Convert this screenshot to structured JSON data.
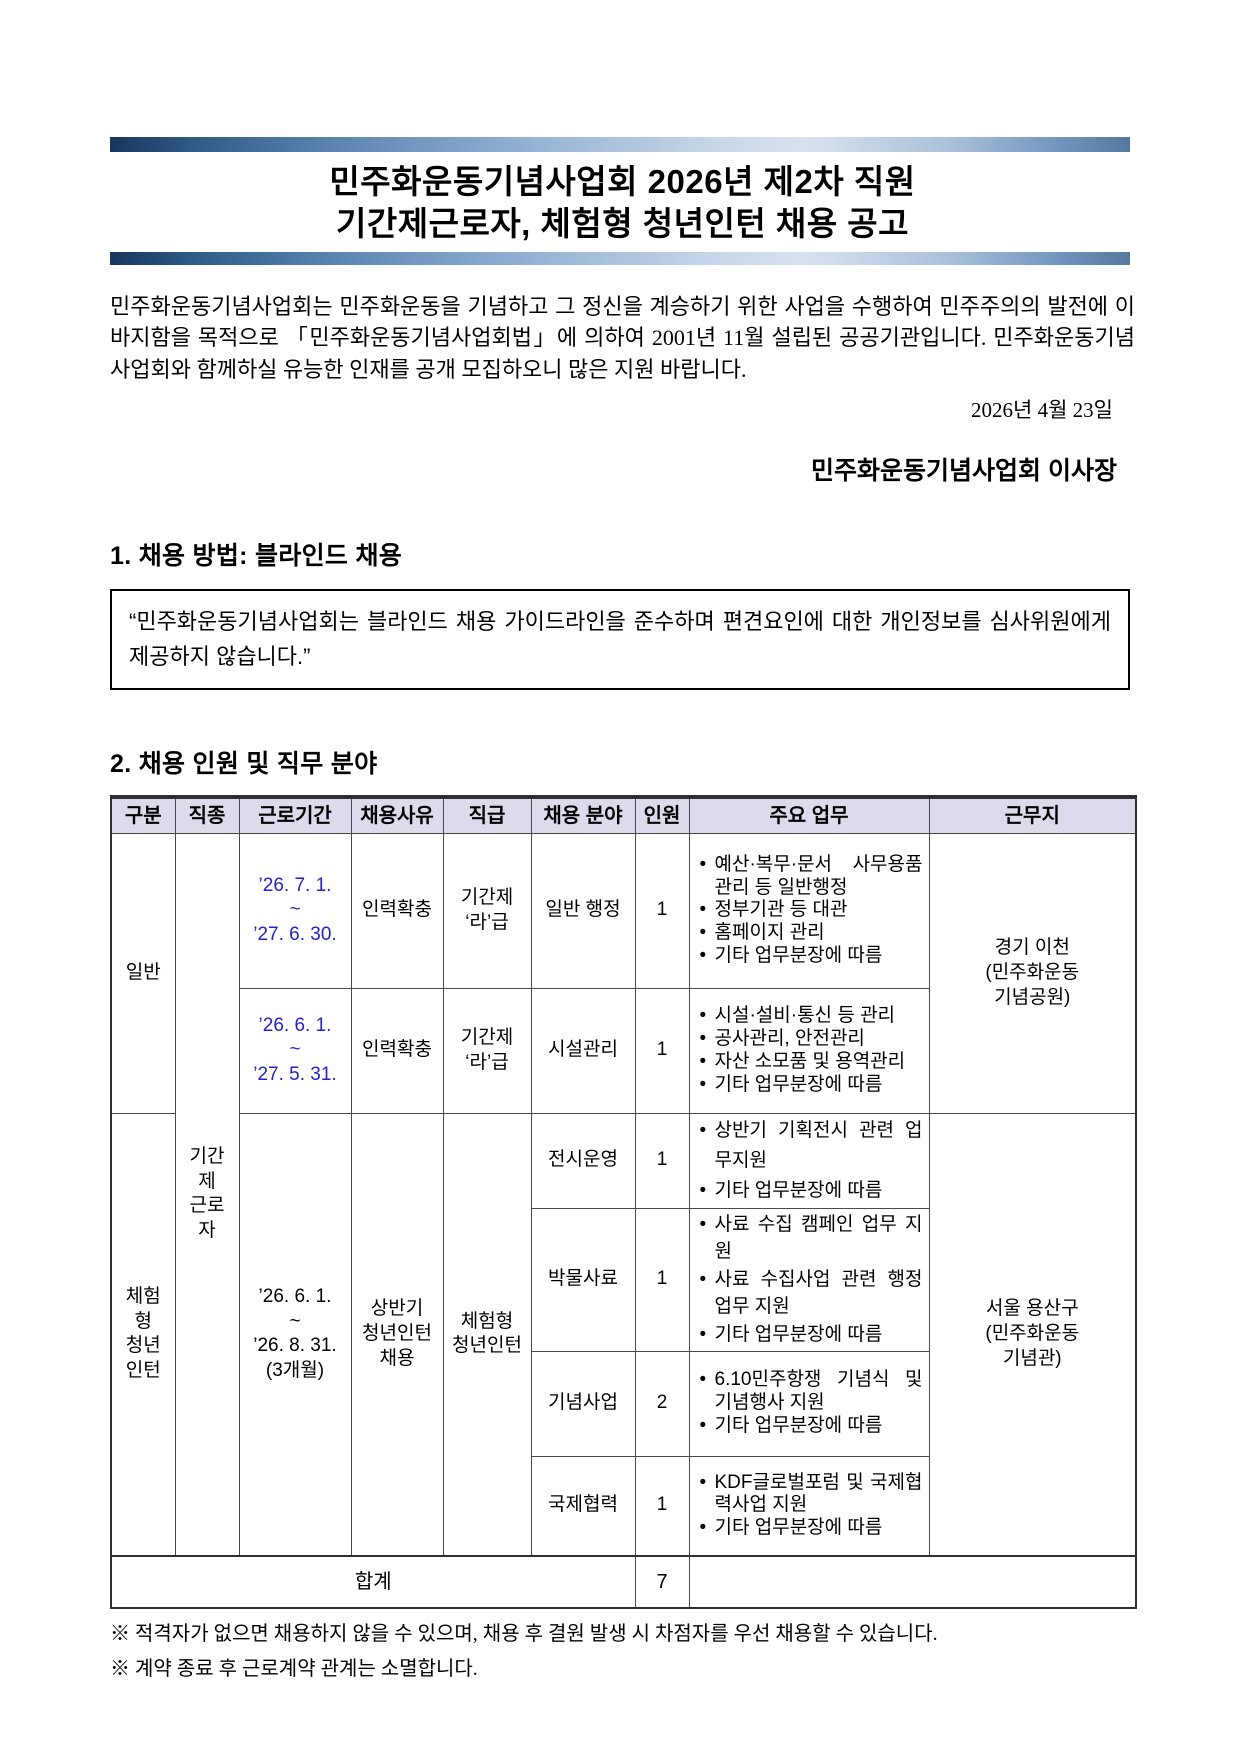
{
  "colors": {
    "date_blue": "#2323c8",
    "table_header_bg": "#dbdbeb"
  },
  "doc": {
    "title_line1": "민주화운동기념사업회 2026년 제2차 직원",
    "title_line2": "기간제근로자, 체험형 청년인턴 채용 공고",
    "intro": "민주화운동기념사업회는 민주화운동을 기념하고 그 정신을 계승하기 위한 사업을 수행하여 민주주의의 발전에 이바지함을 목적으로 「민주화운동기념사업회법」에 의하여 2001년 11월 설립된 공공기관입니다. 민주화운동기념사업회와 함께하실 유능한 인재를 공개 모집하오니 많은 지원 바랍니다.",
    "date": "2026년 4월 23일",
    "issuer": "민주화운동기념사업회 이사장",
    "section1_heading": "1. 채용 방법: 블라인드 채용",
    "blind_quote": "“민주화운동기념사업회는 블라인드 채용 가이드라인을 준수하며 편견요인에 대한 개인정보를 심사위원에게 제공하지 않습니다.”",
    "section2_heading": "2. 채용 인원 및 직무 분야",
    "notes": [
      "※ 적격자가 없으면 채용하지 않을 수 있으며, 채용 후 결원 발생 시 차점자를 우선 채용할 수 있습니다.",
      "※ 계약 종료 후 근로계약 관계는 소멸합니다."
    ]
  },
  "table": {
    "headers": [
      "구분",
      "직종",
      "근로기간",
      "채용사유",
      "직급",
      "채용 분야",
      "인원",
      "주요 업무",
      "근무지"
    ],
    "groups": {
      "general": "일반",
      "intern": "체험형\n청년\n인턴"
    },
    "job_type": "기간제\n근로자",
    "locations": {
      "general": "경기 이천\n(민주화운동\n기념공원)",
      "intern": "서울 용산구\n(민주화운동\n기념관)"
    },
    "intern_common": {
      "period": "’26. 6. 1.\n~\n’26. 8. 31.\n(3개월)",
      "reason": "상반기\n청년인턴\n채용",
      "grade": "체험형\n청년인턴"
    },
    "rows": [
      {
        "period": "’26. 7. 1.\n~\n’27. 6. 30.",
        "reason": "인력확충",
        "grade": "기간제\n‘라’급",
        "field": "일반 행정",
        "count": "1",
        "tasks": [
          "예산·복무·문서 사무용품 관리 등 일반행정",
          "정부기관 등 대관",
          "홈페이지 관리",
          "기타 업무분장에 따름"
        ]
      },
      {
        "period": "’26. 6. 1.\n~\n’27. 5. 31.",
        "reason": "인력확충",
        "grade": "기간제\n‘라’급",
        "field": "시설관리",
        "count": "1",
        "tasks": [
          "시설·설비·통신 등 관리",
          "공사관리, 안전관리",
          "자산 소모품 및 용역관리",
          "기타 업무분장에 따름"
        ]
      },
      {
        "field": "전시운영",
        "count": "1",
        "tasks": [
          "상반기 기획전시 관련 업무지원",
          "기타 업무분장에 따름"
        ]
      },
      {
        "field": "박물사료",
        "count": "1",
        "tasks": [
          "사료 수집 캠페인 업무 지원",
          "사료 수집사업 관련 행정 업무 지원",
          "기타 업무분장에 따름"
        ]
      },
      {
        "field": "기념사업",
        "count": "2",
        "tasks": [
          "6.10민주항쟁 기념식 및 기념행사 지원",
          "기타 업무분장에 따름"
        ]
      },
      {
        "field": "국제협력",
        "count": "1",
        "tasks": [
          "KDF글로벌포럼 및 국제협력사업 지원",
          "기타 업무분장에 따름"
        ]
      }
    ],
    "total_label": "합계",
    "total_count": "7"
  }
}
